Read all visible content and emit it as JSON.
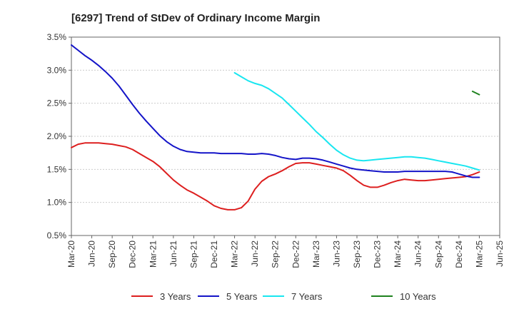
{
  "chart_data": {
    "type": "line",
    "title": "[6297]  Trend of StDev of Ordinary Income Margin",
    "xlabel": "",
    "ylabel": "",
    "x_ticks": [
      "Mar-20",
      "Jun-20",
      "Sep-20",
      "Dec-20",
      "Mar-21",
      "Jun-21",
      "Sep-21",
      "Dec-21",
      "Mar-22",
      "Jun-22",
      "Sep-22",
      "Dec-22",
      "Mar-23",
      "Jun-23",
      "Sep-23",
      "Dec-23",
      "Mar-24",
      "Jun-24",
      "Sep-24",
      "Dec-24",
      "Mar-25",
      "Jun-25"
    ],
    "y_ticks": [
      "0.5%",
      "1.0%",
      "1.5%",
      "2.0%",
      "2.5%",
      "3.0%",
      "3.5%"
    ],
    "ylim": [
      0.5,
      3.5
    ],
    "grid": true,
    "legend_position": "bottom",
    "series": [
      {
        "name": "3 Years",
        "color": "#dd1f1f",
        "x": [
          "Mar-20",
          "Apr-20",
          "May-20",
          "Jun-20",
          "Jul-20",
          "Aug-20",
          "Sep-20",
          "Oct-20",
          "Nov-20",
          "Dec-20",
          "Jan-21",
          "Feb-21",
          "Mar-21",
          "Apr-21",
          "May-21",
          "Jun-21",
          "Jul-21",
          "Aug-21",
          "Sep-21",
          "Oct-21",
          "Nov-21",
          "Dec-21",
          "Jan-22",
          "Feb-22",
          "Mar-22",
          "Apr-22",
          "May-22",
          "Jun-22",
          "Jul-22",
          "Aug-22",
          "Sep-22",
          "Oct-22",
          "Nov-22",
          "Dec-22",
          "Jan-23",
          "Feb-23",
          "Mar-23",
          "Apr-23",
          "May-23",
          "Jun-23",
          "Jul-23",
          "Aug-23",
          "Sep-23",
          "Oct-23",
          "Nov-23",
          "Dec-23",
          "Jan-24",
          "Feb-24",
          "Mar-24",
          "Apr-24",
          "May-24",
          "Jun-24",
          "Jul-24",
          "Aug-24",
          "Sep-24",
          "Oct-24",
          "Nov-24",
          "Dec-24",
          "Jan-25",
          "Feb-25",
          "Mar-25"
        ],
        "values": [
          1.83,
          1.88,
          1.9,
          1.9,
          1.9,
          1.89,
          1.88,
          1.86,
          1.84,
          1.8,
          1.74,
          1.68,
          1.62,
          1.54,
          1.44,
          1.34,
          1.26,
          1.19,
          1.14,
          1.08,
          1.02,
          0.95,
          0.91,
          0.89,
          0.89,
          0.92,
          1.02,
          1.2,
          1.32,
          1.39,
          1.43,
          1.48,
          1.54,
          1.59,
          1.6,
          1.6,
          1.58,
          1.56,
          1.54,
          1.52,
          1.48,
          1.41,
          1.33,
          1.26,
          1.23,
          1.23,
          1.26,
          1.3,
          1.33,
          1.35,
          1.34,
          1.33,
          1.33,
          1.34,
          1.35,
          1.36,
          1.37,
          1.38,
          1.39,
          1.42,
          1.46
        ]
      },
      {
        "name": "5 Years",
        "color": "#1414c8",
        "x": [
          "Mar-20",
          "Apr-20",
          "May-20",
          "Jun-20",
          "Jul-20",
          "Aug-20",
          "Sep-20",
          "Oct-20",
          "Nov-20",
          "Dec-20",
          "Jan-21",
          "Feb-21",
          "Mar-21",
          "Apr-21",
          "May-21",
          "Jun-21",
          "Jul-21",
          "Aug-21",
          "Sep-21",
          "Oct-21",
          "Nov-21",
          "Dec-21",
          "Jan-22",
          "Feb-22",
          "Mar-22",
          "Apr-22",
          "May-22",
          "Jun-22",
          "Jul-22",
          "Aug-22",
          "Sep-22",
          "Oct-22",
          "Nov-22",
          "Dec-22",
          "Jan-23",
          "Feb-23",
          "Mar-23",
          "Apr-23",
          "May-23",
          "Jun-23",
          "Jul-23",
          "Aug-23",
          "Sep-23",
          "Oct-23",
          "Nov-23",
          "Dec-23",
          "Jan-24",
          "Feb-24",
          "Mar-24",
          "Apr-24",
          "May-24",
          "Jun-24",
          "Jul-24",
          "Aug-24",
          "Sep-24",
          "Oct-24",
          "Nov-24",
          "Dec-24",
          "Jan-25",
          "Feb-25",
          "Mar-25"
        ],
        "values": [
          3.38,
          3.3,
          3.22,
          3.15,
          3.07,
          2.98,
          2.88,
          2.76,
          2.62,
          2.48,
          2.35,
          2.23,
          2.12,
          2.01,
          1.92,
          1.85,
          1.8,
          1.77,
          1.76,
          1.75,
          1.75,
          1.75,
          1.74,
          1.74,
          1.74,
          1.74,
          1.73,
          1.73,
          1.74,
          1.73,
          1.71,
          1.68,
          1.66,
          1.65,
          1.67,
          1.67,
          1.66,
          1.64,
          1.61,
          1.58,
          1.55,
          1.52,
          1.5,
          1.49,
          1.48,
          1.47,
          1.46,
          1.46,
          1.46,
          1.47,
          1.47,
          1.47,
          1.47,
          1.47,
          1.47,
          1.47,
          1.46,
          1.43,
          1.4,
          1.38,
          1.38
        ]
      },
      {
        "name": "7 Years",
        "color": "#19e6f0",
        "x": [
          "Mar-22",
          "Apr-22",
          "May-22",
          "Jun-22",
          "Jul-22",
          "Aug-22",
          "Sep-22",
          "Oct-22",
          "Nov-22",
          "Dec-22",
          "Jan-23",
          "Feb-23",
          "Mar-23",
          "Apr-23",
          "May-23",
          "Jun-23",
          "Jul-23",
          "Aug-23",
          "Sep-23",
          "Oct-23",
          "Nov-23",
          "Dec-23",
          "Jan-24",
          "Feb-24",
          "Mar-24",
          "Apr-24",
          "May-24",
          "Jun-24",
          "Jul-24",
          "Aug-24",
          "Sep-24",
          "Oct-24",
          "Nov-24",
          "Dec-24",
          "Jan-25",
          "Feb-25",
          "Mar-25"
        ],
        "values": [
          2.96,
          2.9,
          2.84,
          2.8,
          2.77,
          2.72,
          2.65,
          2.58,
          2.48,
          2.38,
          2.28,
          2.18,
          2.07,
          1.98,
          1.88,
          1.79,
          1.72,
          1.67,
          1.64,
          1.63,
          1.64,
          1.65,
          1.66,
          1.67,
          1.68,
          1.69,
          1.69,
          1.68,
          1.67,
          1.65,
          1.63,
          1.61,
          1.59,
          1.57,
          1.55,
          1.52,
          1.49
        ]
      },
      {
        "name": "10 Years",
        "color": "#1e821e",
        "x": [
          "Feb-25",
          "Mar-25"
        ],
        "values": [
          2.68,
          2.63
        ]
      }
    ]
  }
}
